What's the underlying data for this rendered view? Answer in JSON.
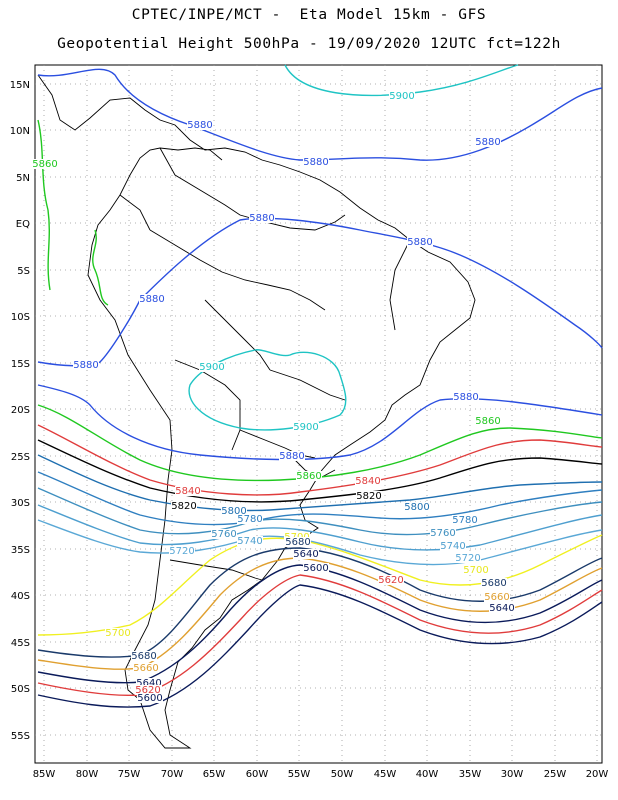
{
  "header": {
    "line1": "CPTEC/INPE/MCT -  Eta Model 15km - GFS",
    "line2": "Geopotential Height 500hPa - 19/09/2020 12UTC fct=122h"
  },
  "map": {
    "lat_labels": [
      "15N",
      "10N",
      "5N",
      "EQ",
      "5S",
      "10S",
      "15S",
      "20S",
      "25S",
      "30S",
      "35S",
      "40S",
      "45S",
      "50S",
      "55S"
    ],
    "lon_labels": [
      "85W",
      "80W",
      "75W",
      "70W",
      "65W",
      "60W",
      "55W",
      "50W",
      "45W",
      "40W",
      "35W",
      "30W",
      "25W",
      "20W"
    ]
  },
  "contours": [
    {
      "value": "5900",
      "color": "#1fc4c4"
    },
    {
      "value": "5880",
      "color": "#2b4fe0"
    },
    {
      "value": "5860",
      "color": "#20c820"
    },
    {
      "value": "5840",
      "color": "#000000"
    },
    {
      "value": "5820",
      "color": "#e03c3c"
    },
    {
      "value": "5800",
      "color": "#1f6fb0"
    },
    {
      "value": "5780",
      "color": "#2f7fc0"
    },
    {
      "value": "5760",
      "color": "#3e8fbf"
    },
    {
      "value": "5740",
      "color": "#4e9fcf"
    },
    {
      "value": "5720",
      "color": "#5aa8d6"
    },
    {
      "value": "5700",
      "color": "#f0f020"
    },
    {
      "value": "5680",
      "color": "#e0a030"
    },
    {
      "value": "5660",
      "color": "#1a3a6a"
    },
    {
      "value": "5640",
      "color": "#e03c3c"
    },
    {
      "value": "5620",
      "color": "#0a1a5a"
    }
  ],
  "contour_labels": [
    {
      "text": "5900",
      "color": "#1fc4c4"
    },
    {
      "text": "5880",
      "color": "#2b4fe0"
    },
    {
      "text": "5880",
      "color": "#2b4fe0"
    },
    {
      "text": "5880",
      "color": "#2b4fe0"
    },
    {
      "text": "5880",
      "color": "#2b4fe0"
    },
    {
      "text": "5880",
      "color": "#2b4fe0"
    },
    {
      "text": "5880",
      "color": "#2b4fe0"
    },
    {
      "text": "5880",
      "color": "#2b4fe0"
    },
    {
      "text": "5900",
      "color": "#1fc4c4"
    },
    {
      "text": "5900",
      "color": "#1fc4c4"
    },
    {
      "text": "5880",
      "color": "#2b4fe0"
    },
    {
      "text": "5880",
      "color": "#2b4fe0"
    },
    {
      "text": "5860",
      "color": "#20c820"
    },
    {
      "text": "5860",
      "color": "#20c820"
    },
    {
      "text": "5860",
      "color": "#20c820"
    },
    {
      "text": "5840",
      "color": "#e03c3c"
    },
    {
      "text": "5840",
      "color": "#e03c3c"
    },
    {
      "text": "5820",
      "color": "#000000"
    },
    {
      "text": "5820",
      "color": "#000000"
    },
    {
      "text": "5800",
      "color": "#1f6fb0"
    },
    {
      "text": "5800",
      "color": "#1f6fb0"
    },
    {
      "text": "5780",
      "color": "#2f7fc0"
    },
    {
      "text": "5780",
      "color": "#2f7fc0"
    },
    {
      "text": "5760",
      "color": "#3e8fbf"
    },
    {
      "text": "5760",
      "color": "#3e8fbf"
    },
    {
      "text": "5740",
      "color": "#4e9fcf"
    },
    {
      "text": "5740",
      "color": "#4e9fcf"
    },
    {
      "text": "5720",
      "color": "#5aa8d6"
    },
    {
      "text": "5720",
      "color": "#5aa8d6"
    },
    {
      "text": "5700",
      "color": "#e8e820"
    },
    {
      "text": "5700",
      "color": "#e8e820"
    },
    {
      "text": "5700",
      "color": "#e8e820"
    },
    {
      "text": "5680",
      "color": "#1a3a6a"
    },
    {
      "text": "5680",
      "color": "#1a3a6a"
    },
    {
      "text": "5660",
      "color": "#e0a030"
    },
    {
      "text": "5660",
      "color": "#e0a030"
    },
    {
      "text": "5640",
      "color": "#0a1a5a"
    },
    {
      "text": "5640",
      "color": "#0a1a5a"
    },
    {
      "text": "5620",
      "color": "#e03c3c"
    },
    {
      "text": "5620",
      "color": "#e03c3c"
    },
    {
      "text": "5600",
      "color": "#0a1a5a"
    },
    {
      "text": "5600",
      "color": "#0a1a5a"
    },
    {
      "text": "5680",
      "color": "#1a3a6a"
    },
    {
      "text": "5640",
      "color": "#0a1a5a"
    }
  ]
}
